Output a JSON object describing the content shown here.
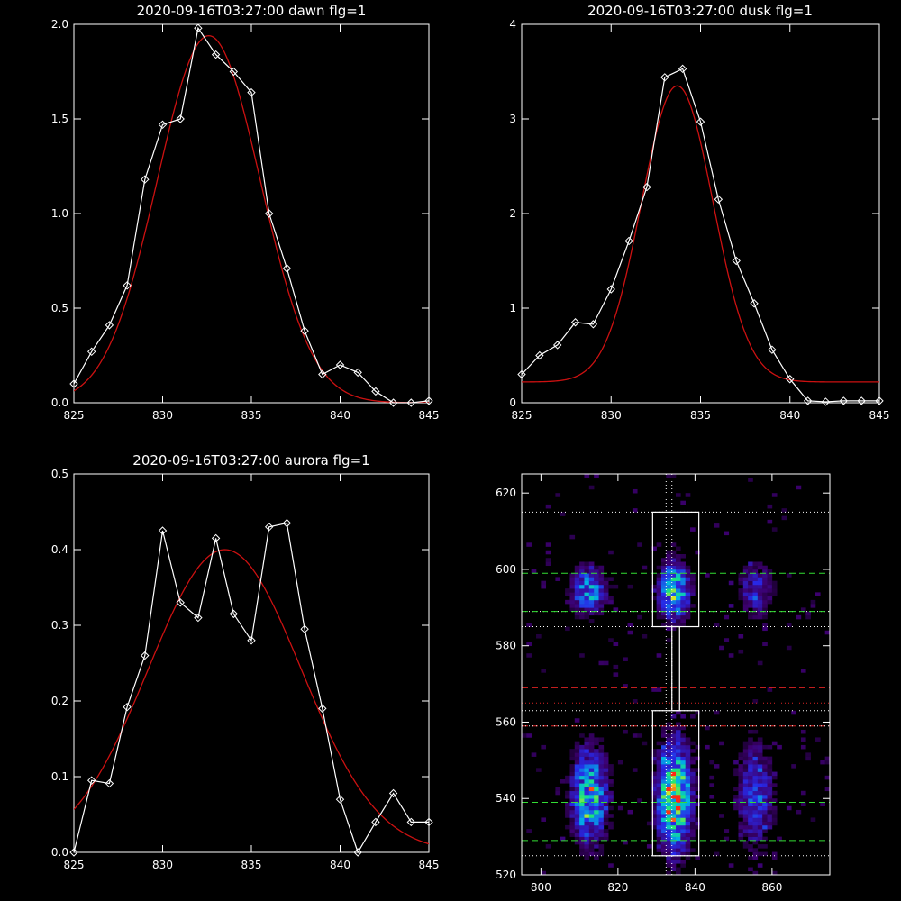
{
  "figure": {
    "background": "#000000",
    "foreground": "#ffffff",
    "fit_color": "#cc1111",
    "data_color": "#ffffff"
  },
  "chart_data": [
    {
      "type": "line",
      "title": "2020-09-16T03:27:00 dawn flg=1",
      "xlim": [
        825,
        845
      ],
      "ylim": [
        0.0,
        2.0
      ],
      "xticks": [
        825,
        830,
        835,
        840,
        845
      ],
      "yticks": [
        "0.0",
        "0.5",
        "1.0",
        "1.5",
        "2.0"
      ],
      "series": [
        {
          "marker": "diamond",
          "x": [
            825,
            826,
            827,
            828,
            829,
            830,
            831,
            832,
            833,
            834,
            835,
            836,
            837,
            838,
            839,
            840,
            841,
            842,
            843,
            844,
            845
          ],
          "y": [
            0.1,
            0.27,
            0.41,
            0.62,
            1.18,
            1.47,
            1.5,
            1.98,
            1.84,
            1.75,
            1.64,
            1.0,
            0.71,
            0.38,
            0.15,
            0.2,
            0.16,
            0.06,
            0.0,
            0.0,
            0.01
          ]
        },
        {
          "kind": "gaussian_fit",
          "amplitude": 1.94,
          "center": 832.6,
          "sigma": 2.9,
          "offset": 0.0
        }
      ]
    },
    {
      "type": "line",
      "title": "2020-09-16T03:27:00 dusk flg=1",
      "xlim": [
        825,
        845
      ],
      "ylim": [
        0,
        4
      ],
      "xticks": [
        825,
        830,
        835,
        840,
        845
      ],
      "yticks": [
        "0",
        "1",
        "2",
        "3",
        "4"
      ],
      "series": [
        {
          "marker": "diamond",
          "x": [
            825,
            826,
            827,
            828,
            829,
            830,
            831,
            832,
            833,
            834,
            835,
            836,
            837,
            838,
            839,
            840,
            841,
            842,
            843,
            844,
            845
          ],
          "y": [
            0.3,
            0.5,
            0.61,
            0.85,
            0.83,
            1.2,
            1.71,
            2.28,
            3.44,
            3.53,
            2.97,
            2.15,
            1.5,
            1.05,
            0.56,
            0.25,
            0.02,
            0.01,
            0.02,
            0.02,
            0.02
          ]
        },
        {
          "kind": "gaussian_fit",
          "amplitude": 3.13,
          "center": 833.7,
          "sigma": 2.0,
          "offset": 0.22
        }
      ]
    },
    {
      "type": "line",
      "title": "2020-09-16T03:27:00 aurora flg=1",
      "xlim": [
        825,
        845
      ],
      "ylim": [
        0.0,
        0.5
      ],
      "xticks": [
        825,
        830,
        835,
        840,
        845
      ],
      "yticks": [
        "0.0",
        "0.1",
        "0.2",
        "0.3",
        "0.4",
        "0.5"
      ],
      "series": [
        {
          "marker": "diamond",
          "x": [
            825,
            826,
            827,
            828,
            829,
            830,
            831,
            832,
            833,
            834,
            835,
            836,
            837,
            838,
            839,
            840,
            841,
            842,
            843,
            844,
            845
          ],
          "y": [
            0.0,
            0.095,
            0.091,
            0.192,
            0.26,
            0.425,
            0.33,
            0.31,
            0.415,
            0.315,
            0.28,
            0.43,
            0.435,
            0.295,
            0.19,
            0.07,
            0.0,
            0.04,
            0.078,
            0.04,
            0.04
          ]
        },
        {
          "kind": "gaussian_fit",
          "amplitude": 0.4,
          "center": 833.5,
          "sigma": 4.3,
          "offset": 0.0
        }
      ]
    },
    {
      "type": "heatmap",
      "title": "",
      "xlim": [
        795,
        875
      ],
      "ylim": [
        520,
        625
      ],
      "xticks": [
        "800",
        "820",
        "840",
        "860"
      ],
      "yticks": [
        "520",
        "540",
        "560",
        "580",
        "600",
        "620"
      ],
      "colormap": "rainbow",
      "blobs": [
        {
          "x": 812,
          "y": 594,
          "sx": 3,
          "sy": 4,
          "a": 0.55
        },
        {
          "x": 812,
          "y": 540,
          "sx": 3,
          "sy": 8,
          "a": 0.7
        },
        {
          "x": 834,
          "y": 594,
          "sx": 2.5,
          "sy": 5,
          "a": 0.75
        },
        {
          "x": 834,
          "y": 540,
          "sx": 2.8,
          "sy": 9,
          "a": 1.0
        },
        {
          "x": 855,
          "y": 594,
          "sx": 3,
          "sy": 5,
          "a": 0.3
        },
        {
          "x": 855,
          "y": 540,
          "sx": 3,
          "sy": 9,
          "a": 0.4
        }
      ],
      "boxes": [
        {
          "x": [
            829,
            841
          ],
          "y": [
            585,
            615
          ]
        },
        {
          "x": [
            829,
            841
          ],
          "y": [
            525,
            563
          ]
        },
        {
          "x": [
            834,
            836
          ],
          "y": [
            563,
            585
          ]
        }
      ],
      "lines": [
        {
          "orientation": "h",
          "value": 615,
          "color": "#ffffff",
          "style": "dotted"
        },
        {
          "orientation": "h",
          "value": 599,
          "color": "#33dd33",
          "style": "dashed"
        },
        {
          "orientation": "h",
          "value": 589,
          "color": "#ffffff",
          "style": "dotted"
        },
        {
          "orientation": "h",
          "value": 589,
          "color": "#33dd33",
          "style": "dashed"
        },
        {
          "orientation": "h",
          "value": 585,
          "color": "#ffffff",
          "style": "dotted"
        },
        {
          "orientation": "h",
          "value": 569,
          "color": "#dd2222",
          "style": "dashed"
        },
        {
          "orientation": "h",
          "value": 565,
          "color": "#dd2222",
          "style": "dotted"
        },
        {
          "orientation": "h",
          "value": 563,
          "color": "#ffffff",
          "style": "dotted"
        },
        {
          "orientation": "h",
          "value": 559,
          "color": "#dd2222",
          "style": "dashed"
        },
        {
          "orientation": "h",
          "value": 559,
          "color": "#ffffff",
          "style": "dotted"
        },
        {
          "orientation": "h",
          "value": 539,
          "color": "#33dd33",
          "style": "dashed"
        },
        {
          "orientation": "h",
          "value": 529,
          "color": "#33dd33",
          "style": "dashed"
        },
        {
          "orientation": "h",
          "value": 525,
          "color": "#ffffff",
          "style": "dotted"
        },
        {
          "orientation": "v",
          "value": 832.5,
          "color": "#ffffff",
          "style": "dotted"
        },
        {
          "orientation": "v",
          "value": 834.0,
          "color": "#ffffff",
          "style": "dotted"
        }
      ]
    }
  ]
}
